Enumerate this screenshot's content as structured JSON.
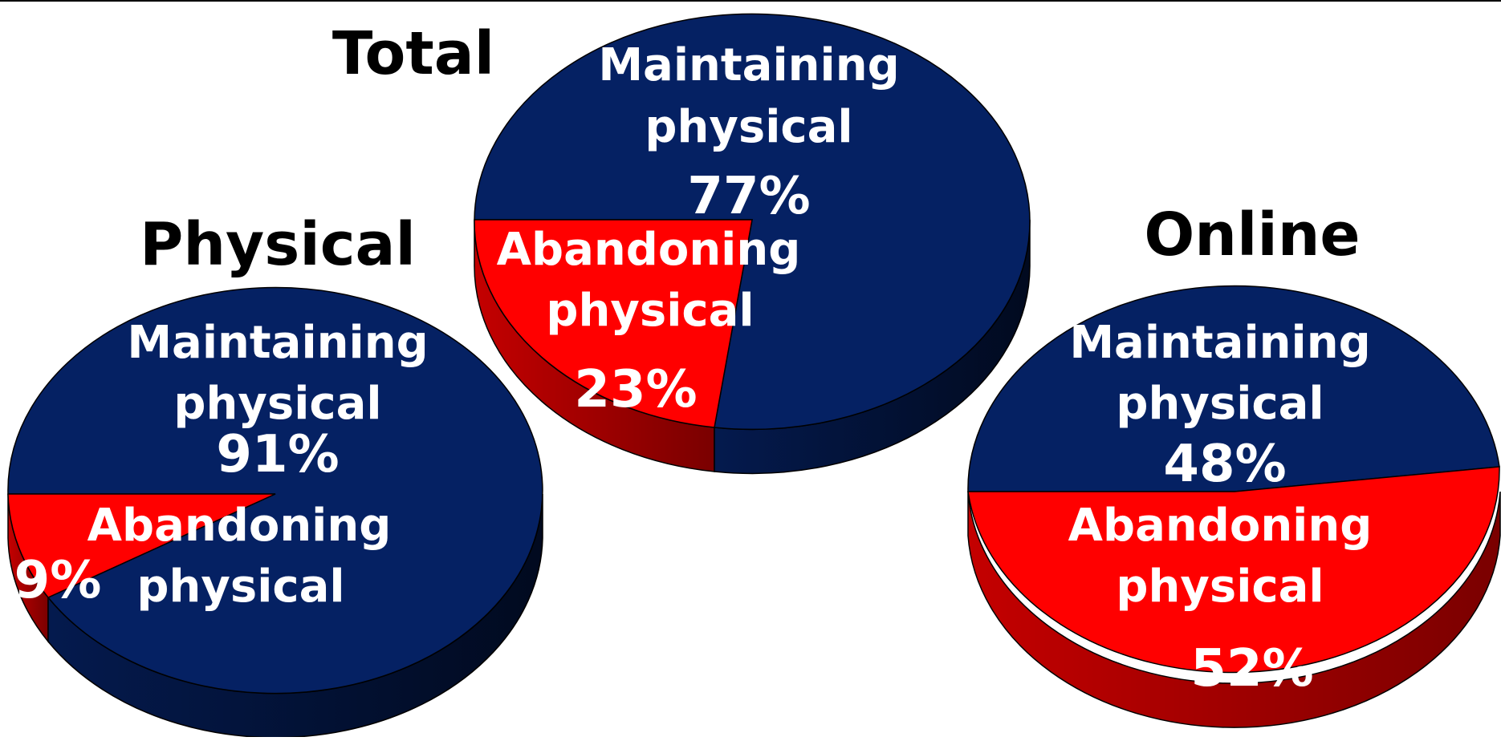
{
  "chart_data": [
    {
      "type": "pie",
      "title": "Total",
      "slices": [
        {
          "label_line1": "Maintaining",
          "label_line2": "physical",
          "value": 77,
          "pct_text": "77%",
          "color": "#052163"
        },
        {
          "label_line1": "Abandoning",
          "label_line2": "physical",
          "value": 23,
          "pct_text": "23%",
          "color": "#ff0000"
        }
      ]
    },
    {
      "type": "pie",
      "title": "Physical",
      "slices": [
        {
          "label_line1": "Maintaining",
          "label_line2": "physical",
          "value": 91,
          "pct_text": "91%",
          "color": "#052163"
        },
        {
          "label_line1": "Abandoning",
          "label_line2": "physical",
          "value": 9,
          "pct_text": "9%",
          "color": "#ff0000"
        }
      ]
    },
    {
      "type": "pie",
      "title": "Online",
      "slices": [
        {
          "label_line1": "Maintaining",
          "label_line2": "physical",
          "value": 48,
          "pct_text": "48%",
          "color": "#052163"
        },
        {
          "label_line1": "Abandoning",
          "label_line2": "physical",
          "value": 52,
          "pct_text": "52%",
          "color": "#ff0000"
        }
      ]
    }
  ],
  "colors": {
    "maintaining_top": "#052163",
    "maintaining_side": "#02102e",
    "abandoning_top": "#ff0000",
    "abandoning_side": "#a00000",
    "label_text": "#ffffff",
    "title_text": "#000000"
  }
}
